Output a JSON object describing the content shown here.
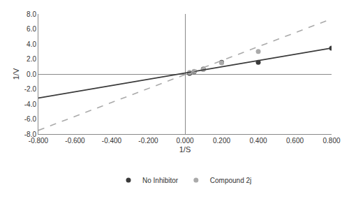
{
  "chart_data": {
    "type": "scatter",
    "xlabel": "1/S",
    "ylabel": "1/V",
    "series": [
      {
        "name": "No Inhibitor",
        "type": "scatter",
        "marker": "circle",
        "color": "#3a3a3a",
        "x": [
          0.025,
          0.05,
          0.1,
          0.2,
          0.4,
          0.8
        ],
        "values": [
          0.1,
          0.3,
          0.65,
          1.55,
          1.55,
          3.45
        ]
      },
      {
        "name": "Compound 2j",
        "type": "scatter",
        "marker": "circle",
        "color": "#aaaaaa",
        "x": [
          0.025,
          0.05,
          0.1,
          0.2,
          0.4
        ],
        "values": [
          0.2,
          0.35,
          0.6,
          1.5,
          3.0
        ]
      },
      {
        "type": "line",
        "line_style": "solid",
        "color": "#3a3a3a",
        "x": [
          -0.8,
          0.8
        ],
        "values": [
          -3.2,
          3.45
        ]
      },
      {
        "type": "line",
        "line_style": "dashed",
        "color": "#aaaaaa",
        "x": [
          -0.8,
          0.8
        ],
        "values": [
          -7.5,
          7.35
        ]
      }
    ],
    "xlim": [
      -0.8,
      0.8
    ],
    "ylim": [
      -8.0,
      8.0
    ],
    "xticks": [
      {
        "value": -0.8,
        "label": "-0.800"
      },
      {
        "value": -0.6,
        "label": "-0.600"
      },
      {
        "value": -0.4,
        "label": "-0.400"
      },
      {
        "value": -0.2,
        "label": "-0.200"
      },
      {
        "value": 0.0,
        "label": "0.000"
      },
      {
        "value": 0.2,
        "label": "0.200"
      },
      {
        "value": 0.4,
        "label": "0.400"
      },
      {
        "value": 0.6,
        "label": "0.600"
      },
      {
        "value": 0.8,
        "label": "0.800"
      }
    ],
    "yticks": [
      {
        "value": -8.0,
        "label": "-8.0"
      },
      {
        "value": -6.0,
        "label": "-6.0"
      },
      {
        "value": -4.0,
        "label": "-4.0"
      },
      {
        "value": -2.0,
        "label": "-2.0"
      },
      {
        "value": 0.0,
        "label": "0.0"
      },
      {
        "value": 2.0,
        "label": "2.0"
      },
      {
        "value": 4.0,
        "label": "4.0"
      },
      {
        "value": 6.0,
        "label": "6.0"
      },
      {
        "value": 8.0,
        "label": "8.0"
      }
    ],
    "grid": false,
    "legend": "bottom"
  }
}
